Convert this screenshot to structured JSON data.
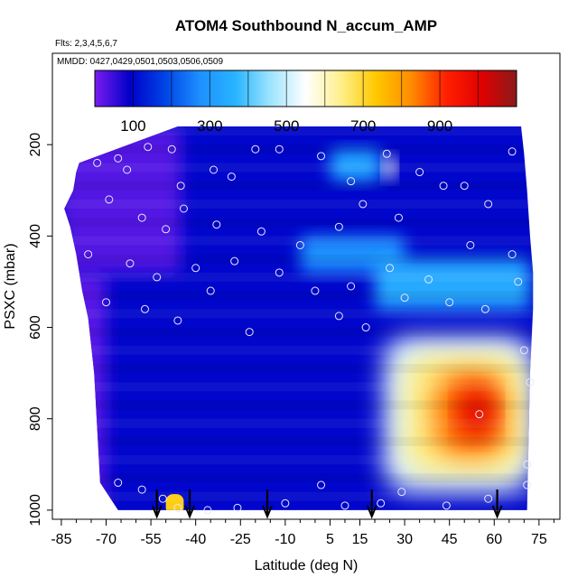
{
  "chart_data": {
    "type": "heatmap",
    "title": "ATOM4 Southbound N_accum_AMP",
    "subtitle_flights": "Flts: 2,3,4,5,6,7",
    "subtitle_dates": "MMDD: 0427,0429,0501,0503,0506,0509",
    "xlabel": "Latitude (deg N)",
    "ylabel": "PSXC (mbar)",
    "xlim": [
      -88,
      82
    ],
    "ylim": [
      1020,
      0
    ],
    "x_ticks": [
      -85,
      -70,
      -55,
      -40,
      -25,
      -10,
      5,
      15,
      30,
      45,
      60,
      75
    ],
    "x_tick_labels": [
      "-85",
      "-70",
      "-55",
      "-40",
      "-25",
      "-10",
      "5",
      "15",
      "30",
      "45",
      "60",
      "75"
    ],
    "y_ticks": [
      200,
      400,
      600,
      800,
      1000
    ],
    "y_tick_labels": [
      "200",
      "400",
      "600",
      "800",
      "1000"
    ],
    "colorbar": {
      "range": [
        0,
        1100
      ],
      "ticks": [
        100,
        300,
        500,
        700,
        900
      ],
      "tick_labels": [
        "100",
        "300",
        "500",
        "700",
        "900"
      ],
      "divisions": [
        100,
        200,
        300,
        400,
        500,
        600,
        700,
        800,
        900,
        1000
      ],
      "colors": [
        "#7a1cf0",
        "#0000c8",
        "#0044e6",
        "#1e90ff",
        "#28b4ff",
        "#9ee4ff",
        "#ffffff",
        "#fff08c",
        "#ffc800",
        "#ff8c00",
        "#ff2000",
        "#e00000",
        "#8b1a1a"
      ]
    },
    "background_value": 100,
    "regions": [
      {
        "name": "upper-left-purple",
        "lat": [
          -85,
          -45
        ],
        "p": [
          160,
          480
        ],
        "value": 30
      },
      {
        "name": "left-edge-purple",
        "lat": [
          -85,
          -70
        ],
        "p": [
          480,
          1000
        ],
        "value": 25
      },
      {
        "name": "top-band-light",
        "lat": [
          5,
          22
        ],
        "p": [
          210,
          280
        ],
        "value": 330
      },
      {
        "name": "top-band-white",
        "lat": [
          23,
          27
        ],
        "p": [
          225,
          275
        ],
        "value": 560
      },
      {
        "name": "mid-band-blue-a",
        "lat": [
          -5,
          30
        ],
        "p": [
          400,
          480
        ],
        "value": 280
      },
      {
        "name": "mid-band-blue-b",
        "lat": [
          20,
          72
        ],
        "p": [
          450,
          560
        ],
        "value": 340
      },
      {
        "name": "plume-outer",
        "lat": [
          23,
          73
        ],
        "p": [
          620,
          960
        ],
        "value": 520
      },
      {
        "name": "plume-mid",
        "lat": [
          30,
          70
        ],
        "p": [
          660,
          920
        ],
        "value": 650
      },
      {
        "name": "plume-core",
        "lat": [
          40,
          64
        ],
        "p": [
          700,
          880
        ],
        "value": 850
      },
      {
        "name": "plume-peak",
        "lat": [
          48,
          60
        ],
        "p": [
          730,
          840
        ],
        "value": 1000
      },
      {
        "name": "bottom-orange",
        "lat": [
          -50,
          -44
        ],
        "p": [
          965,
          1010
        ],
        "value": 720
      }
    ],
    "profile_markers_lat": [
      -53,
      -42,
      -16,
      19,
      61
    ],
    "observations": [
      {
        "lat": -73,
        "p": 240
      },
      {
        "lat": -66,
        "p": 230
      },
      {
        "lat": -63,
        "p": 255
      },
      {
        "lat": -56,
        "p": 205
      },
      {
        "lat": -48,
        "p": 210
      },
      {
        "lat": -45,
        "p": 290
      },
      {
        "lat": -34,
        "p": 255
      },
      {
        "lat": -28,
        "p": 270
      },
      {
        "lat": -20,
        "p": 210
      },
      {
        "lat": -12,
        "p": 210
      },
      {
        "lat": 2,
        "p": 225
      },
      {
        "lat": 12,
        "p": 280
      },
      {
        "lat": 24,
        "p": 220
      },
      {
        "lat": 35,
        "p": 260
      },
      {
        "lat": 43,
        "p": 290
      },
      {
        "lat": 50,
        "p": 290
      },
      {
        "lat": 58,
        "p": 330
      },
      {
        "lat": 66,
        "p": 215
      },
      {
        "lat": -69,
        "p": 320
      },
      {
        "lat": -58,
        "p": 360
      },
      {
        "lat": -50,
        "p": 385
      },
      {
        "lat": -44,
        "p": 340
      },
      {
        "lat": -33,
        "p": 375
      },
      {
        "lat": -18,
        "p": 390
      },
      {
        "lat": -5,
        "p": 420
      },
      {
        "lat": 8,
        "p": 380
      },
      {
        "lat": 16,
        "p": 330
      },
      {
        "lat": 28,
        "p": 360
      },
      {
        "lat": -76,
        "p": 440
      },
      {
        "lat": -62,
        "p": 460
      },
      {
        "lat": -53,
        "p": 490
      },
      {
        "lat": -40,
        "p": 470
      },
      {
        "lat": -27,
        "p": 455
      },
      {
        "lat": -12,
        "p": 480
      },
      {
        "lat": 0,
        "p": 520
      },
      {
        "lat": 12,
        "p": 510
      },
      {
        "lat": 25,
        "p": 470
      },
      {
        "lat": 38,
        "p": 495
      },
      {
        "lat": 52,
        "p": 420
      },
      {
        "lat": 66,
        "p": 440
      },
      {
        "lat": -70,
        "p": 545
      },
      {
        "lat": -57,
        "p": 560
      },
      {
        "lat": -46,
        "p": 585
      },
      {
        "lat": -35,
        "p": 520
      },
      {
        "lat": -22,
        "p": 610
      },
      {
        "lat": 8,
        "p": 575
      },
      {
        "lat": 17,
        "p": 600
      },
      {
        "lat": 30,
        "p": 535
      },
      {
        "lat": 45,
        "p": 545
      },
      {
        "lat": 57,
        "p": 560
      },
      {
        "lat": 68,
        "p": 500
      },
      {
        "lat": 70,
        "p": 650
      },
      {
        "lat": 72,
        "p": 720
      },
      {
        "lat": 71,
        "p": 900
      },
      {
        "lat": 55,
        "p": 790
      },
      {
        "lat": -66,
        "p": 940
      },
      {
        "lat": -58,
        "p": 955
      },
      {
        "lat": -51,
        "p": 975
      },
      {
        "lat": -46,
        "p": 995
      },
      {
        "lat": -36,
        "p": 1000
      },
      {
        "lat": -26,
        "p": 995
      },
      {
        "lat": -10,
        "p": 985
      },
      {
        "lat": 2,
        "p": 945
      },
      {
        "lat": 10,
        "p": 990
      },
      {
        "lat": 22,
        "p": 985
      },
      {
        "lat": 29,
        "p": 960
      },
      {
        "lat": 44,
        "p": 990
      },
      {
        "lat": 58,
        "p": 975
      },
      {
        "lat": 71,
        "p": 945
      }
    ]
  }
}
